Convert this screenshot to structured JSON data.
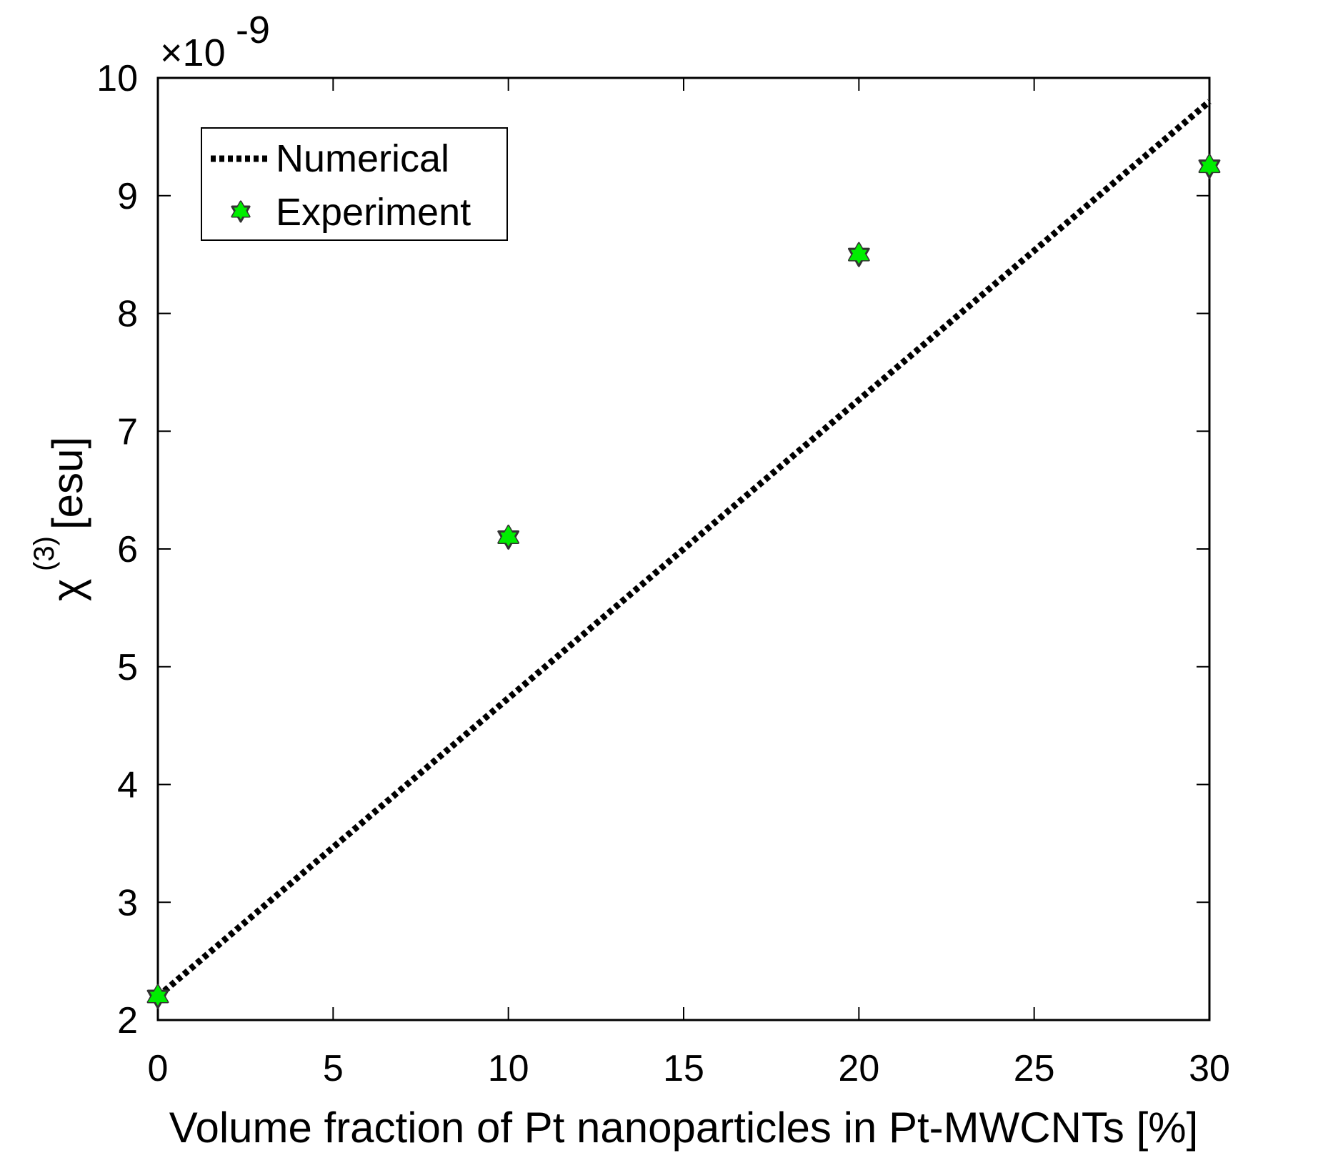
{
  "chart_data": {
    "type": "line",
    "title": "",
    "xlabel": "Volume fraction of Pt nanoparticles in Pt-MWCNTs [%]",
    "ylabel_symbol": "χ",
    "ylabel_superscript": "(3)",
    "ylabel_unit": "[esu]",
    "y_exponent_prefix": "×10",
    "y_exponent_power": "-9",
    "xlim": [
      0,
      30
    ],
    "ylim": [
      2,
      10
    ],
    "xticks": [
      0,
      5,
      10,
      15,
      20,
      25,
      30
    ],
    "xtick_labels": [
      "0",
      "5",
      "10",
      "15",
      "20",
      "25",
      "30"
    ],
    "yticks": [
      2,
      3,
      4,
      5,
      6,
      7,
      8,
      9,
      10
    ],
    "ytick_labels": [
      "2",
      "3",
      "4",
      "5",
      "6",
      "7",
      "8",
      "9",
      "10"
    ],
    "grid": false,
    "legend_position": "top-left",
    "series": [
      {
        "name": "Numerical",
        "style": "dotted-line",
        "color": "#000000",
        "x": [
          0,
          30
        ],
        "y": [
          2.2,
          9.8
        ]
      },
      {
        "name": "Experiment",
        "style": "hexagram-markers",
        "color": "#00ee00",
        "edge_color": "#333333",
        "x": [
          0,
          10,
          20,
          30
        ],
        "y": [
          2.2,
          6.1,
          8.5,
          9.25
        ]
      }
    ]
  }
}
